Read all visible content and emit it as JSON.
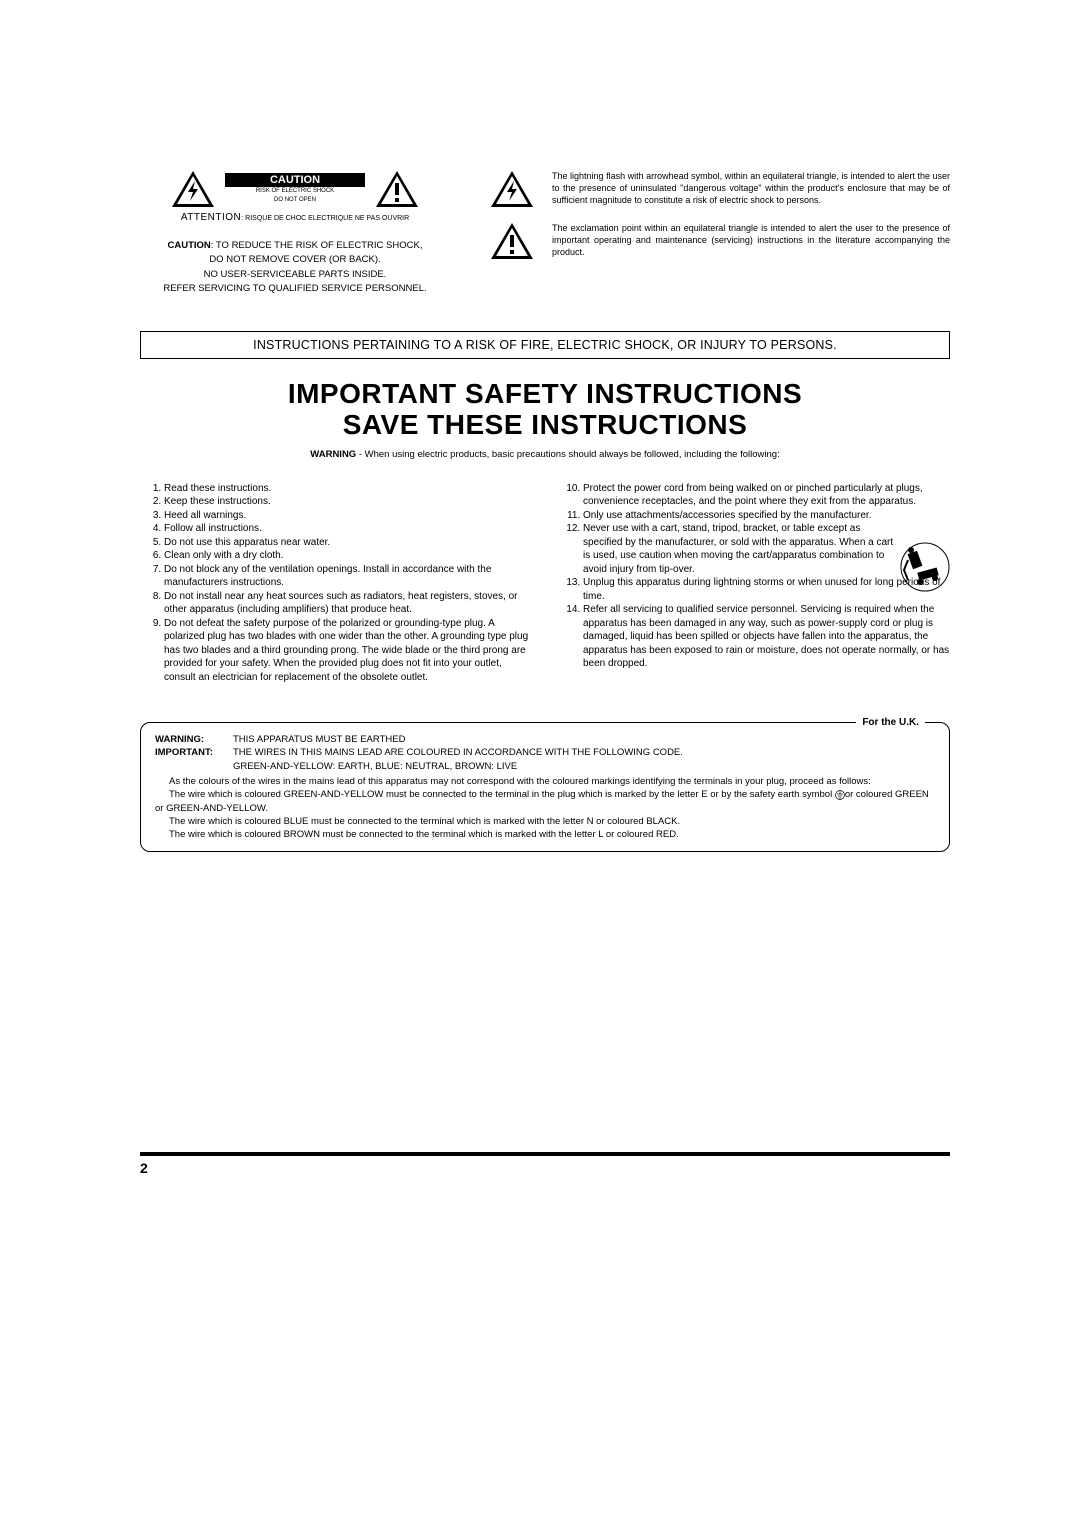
{
  "caution": {
    "label": "CAUTION",
    "risk_line1": "RISK OF ELECTRIC SHOCK",
    "risk_line2": "DO NOT OPEN",
    "attention_word": "ATTENTION",
    "attention_rest": ": RISQUE DE CHOC ELECTRIQUE NE PAS OUVRIR",
    "para_lead": "CAUTION",
    "para_l1": ":   TO REDUCE THE RISK OF ELECTRIC SHOCK,",
    "para_l2": "DO NOT REMOVE COVER (OR BACK).",
    "para_l3": "NO USER-SERVICEABLE PARTS INSIDE.",
    "para_l4": "REFER SERVICING TO QUALIFIED SERVICE PERSONNEL."
  },
  "symbols": {
    "bolt_desc": "The lightning flash with arrowhead symbol, within an equilateral triangle, is intended to alert the user to the presence of uninsulated \"dangerous voltage\" within the product's enclosure that may be of sufficient magnitude to constitute a risk of electric shock to persons.",
    "excl_desc": "The exclamation point within an equilateral triangle is intended to alert the user to the presence of important operating and maintenance (servicing) instructions in the literature accompanying the product."
  },
  "banner": "INSTRUCTIONS PERTAINING TO A RISK OF FIRE, ELECTRIC SHOCK, OR INJURY TO PERSONS.",
  "heading_l1": "IMPORTANT SAFETY INSTRUCTIONS",
  "heading_l2": "SAVE THESE INSTRUCTIONS",
  "warning_lead": "WARNING",
  "warning_text": " - When using electric products, basic precautions should always be followed, including the following:",
  "left_items": [
    "Read these instructions.",
    "Keep these instructions.",
    "Heed all warnings.",
    "Follow all instructions.",
    "Do not use this apparatus near water.",
    "Clean only with a dry cloth.",
    "Do not block any of the ventilation openings. Install in accordance with the manufacturers instructions.",
    "Do not install near any heat sources such as radiators, heat registers, stoves, or other apparatus (including amplifiers) that produce heat.",
    "Do not defeat the safety purpose of the polarized or grounding-type plug. A polarized plug has two blades with one wider than the other. A grounding type plug has two blades and a third grounding prong. The wide blade or the third prong are provided for your safety. When the provided plug does not fit into your outlet, consult an electrician for replacement of the obsolete outlet."
  ],
  "right_items": [
    "Protect the power cord from being walked on or pinched particularly at plugs, convenience receptacles, and the point where they exit from the apparatus.",
    "Only use attachments/accessories specified by the manufacturer.",
    "Never use with a cart, stand, tripod, bracket, or table except as specified by the manufacturer, or sold with the apparatus. When a cart is used, use caution when moving the cart/apparatus combination to avoid injury from tip-over.",
    "Unplug this apparatus during lightning storms or when unused for long periods of time.",
    "Refer all servicing to qualified service personnel. Servicing is required when the apparatus has been damaged in any way, such as power-supply cord or plug is damaged, liquid has been spilled or objects have fallen into the apparatus, the apparatus has been exposed to rain or moisture, does not operate normally, or has been dropped."
  ],
  "uk": {
    "label": "For the U.K.",
    "warning_l": "WARNING:",
    "warning_r": "THIS APPARATUS MUST BE EARTHED",
    "important_l": "IMPORTANT:",
    "important_r": "THE WIRES IN THIS MAINS LEAD ARE COLOURED IN ACCORDANCE WITH THE FOLLOWING CODE.",
    "code_line": "GREEN-AND-YELLOW: EARTH, BLUE: NEUTRAL, BROWN: LIVE",
    "p1": "As the colours of the wires in the mains lead of this apparatus may not correspond with the coloured markings identifying the terminals in your plug, proceed as follows:",
    "p2a": "The wire which is coloured GREEN-AND-YELLOW must be connected to the terminal in the plug which is marked by the letter E or by the safety earth symbol ",
    "p2b": "or coloured GREEN or GREEN-AND-YELLOW.",
    "p3": "The wire which is coloured BLUE must be connected to the terminal which is marked with the letter N or coloured BLACK.",
    "p4": "The wire which is coloured BROWN must be connected to the terminal which is marked with the letter L or coloured RED."
  },
  "page_number": "2"
}
